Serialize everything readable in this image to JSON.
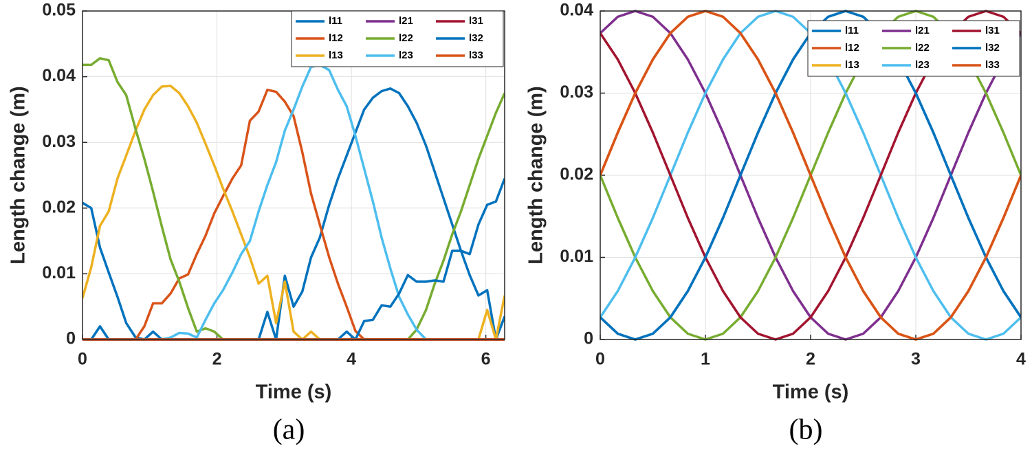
{
  "chart_data": [
    {
      "type": "line",
      "xlabel": "Time (s)",
      "ylabel": "Length change (m)",
      "caption": "(a)",
      "x": [
        0,
        0.13,
        0.26,
        0.39,
        0.52,
        0.65,
        0.79,
        0.92,
        1.05,
        1.18,
        1.31,
        1.44,
        1.57,
        1.7,
        1.83,
        1.96,
        2.09,
        2.23,
        2.36,
        2.49,
        2.62,
        2.75,
        2.88,
        3.01,
        3.14,
        3.27,
        3.4,
        3.53,
        3.67,
        3.8,
        3.93,
        4.06,
        4.19,
        4.32,
        4.45,
        4.58,
        4.71,
        4.84,
        4.97,
        5.11,
        5.24,
        5.37,
        5.5,
        5.63,
        5.76,
        5.89,
        6.02,
        6.15,
        6.28
      ],
      "series": [
        {
          "name": "l11",
          "color": "#0072bd",
          "values": [
            0.0208,
            0.02,
            0.014,
            0.0102,
            0.0065,
            0.0025,
            0.0003,
            0,
            0,
            0,
            0,
            0,
            0,
            0,
            0,
            0,
            0,
            0,
            0,
            0,
            0,
            0.0042,
            0,
            0.0097,
            0.005,
            0.0073,
            0.0125,
            0.0155,
            0.0205,
            0.0245,
            0.028,
            0.0315,
            0.035,
            0.0368,
            0.0378,
            0.0382,
            0.0375,
            0.0355,
            0.033,
            0.0295,
            0.0255,
            0.0215,
            0.0175,
            0.0135,
            0.0098,
            0.0067,
            0.0075,
            0,
            0.0035
          ]
        },
        {
          "name": "l12",
          "color": "#d95319",
          "values": [
            0,
            0,
            0,
            0,
            0,
            0,
            0,
            0.002,
            0.0055,
            0.0055,
            0.007,
            0.0093,
            0.0099,
            0.013,
            0.0158,
            0.0192,
            0.0218,
            0.0245,
            0.0265,
            0.0333,
            0.0347,
            0.038,
            0.0377,
            0.0362,
            0.034,
            0.0285,
            0.0222,
            0.0175,
            0.0125,
            0.0085,
            0.005,
            0.0013,
            0,
            0,
            0,
            0,
            0,
            0,
            0,
            0,
            0,
            0,
            0,
            0,
            0,
            0,
            0,
            0,
            0
          ]
        },
        {
          "name": "l13",
          "color": "#edb120",
          "values": [
            0.0063,
            0.011,
            0.0173,
            0.0195,
            0.0245,
            0.028,
            0.0318,
            0.035,
            0.0372,
            0.0385,
            0.0386,
            0.0375,
            0.0355,
            0.033,
            0.0298,
            0.0265,
            0.023,
            0.0195,
            0.016,
            0.0125,
            0.0085,
            0.0097,
            0.0025,
            0.0088,
            0.0012,
            0,
            0.0012,
            0,
            0,
            0,
            0,
            0,
            0,
            0,
            0,
            0,
            0,
            0,
            0,
            0,
            0,
            0,
            0,
            0,
            0,
            0,
            0.0045,
            0,
            0.0067
          ]
        },
        {
          "name": "l21",
          "color": "#7e2f8e",
          "values": [
            0,
            0,
            0,
            0,
            0,
            0,
            0,
            0,
            0,
            0,
            0,
            0,
            0,
            0,
            0,
            0,
            0,
            0,
            0,
            0,
            0,
            0,
            0,
            0,
            0,
            0,
            0,
            0,
            0,
            0,
            0,
            0,
            0,
            0,
            0,
            0,
            0,
            0,
            0,
            0,
            0,
            0,
            0,
            0,
            0,
            0,
            0,
            0,
            0
          ]
        },
        {
          "name": "l22",
          "color": "#77ac30",
          "values": [
            0.0418,
            0.0418,
            0.0428,
            0.0425,
            0.0392,
            0.0372,
            0.032,
            0.0275,
            0.0225,
            0.0172,
            0.0122,
            0.0088,
            0.0048,
            0.0012,
            0.0017,
            0.0012,
            0,
            0,
            0,
            0,
            0,
            0,
            0,
            0,
            0,
            0,
            0,
            0,
            0,
            0,
            0,
            0,
            0,
            0,
            0,
            0,
            0,
            0,
            0.0015,
            0.0045,
            0.0085,
            0.012,
            0.016,
            0.0195,
            0.0235,
            0.0275,
            0.031,
            0.0345,
            0.0375
          ]
        },
        {
          "name": "l23",
          "color": "#4dbeee",
          "values": [
            0,
            0,
            0,
            0,
            0,
            0,
            0,
            0,
            0,
            0,
            0.0003,
            0.001,
            0.0009,
            0.0003,
            0.003,
            0.0055,
            0.0075,
            0.0102,
            0.013,
            0.015,
            0.0195,
            0.0235,
            0.027,
            0.0318,
            0.035,
            0.0385,
            0.0415,
            0.0418,
            0.041,
            0.038,
            0.0355,
            0.031,
            0.026,
            0.021,
            0.0155,
            0.0108,
            0.0065,
            0.0038,
            0.0015,
            0,
            0,
            0,
            0,
            0,
            0,
            0,
            0,
            0,
            0
          ]
        },
        {
          "name": "l31",
          "color": "#a2142f",
          "values": [
            0,
            0,
            0,
            0,
            0,
            0,
            0,
            0,
            0,
            0,
            0,
            0,
            0,
            0,
            0,
            0,
            0,
            0,
            0,
            0,
            0,
            0,
            0,
            0,
            0,
            0,
            0,
            0,
            0,
            0,
            0,
            0,
            0,
            0,
            0,
            0,
            0,
            0,
            0,
            0,
            0,
            0,
            0,
            0,
            0,
            0,
            0,
            0,
            0
          ]
        },
        {
          "name": "l32",
          "color": "#0072bd",
          "values": [
            0,
            0,
            0.002,
            0,
            0,
            0,
            0,
            0,
            0.0012,
            0,
            0,
            0,
            0,
            0,
            0,
            0,
            0,
            0,
            0,
            0,
            0,
            0,
            0,
            0,
            0,
            0,
            0,
            0,
            0,
            0,
            0.0012,
            0,
            0.0028,
            0.003,
            0.0052,
            0.005,
            0.007,
            0.0098,
            0.0088,
            0.0088,
            0.009,
            0.0088,
            0.0135,
            0.0135,
            0.013,
            0.0175,
            0.0205,
            0.021,
            0.0245
          ]
        },
        {
          "name": "l33",
          "color": "#d95319",
          "values": [
            0,
            0,
            0,
            0,
            0,
            0,
            0,
            0,
            0,
            0,
            0,
            0,
            0,
            0,
            0,
            0,
            0,
            0,
            0,
            0,
            0,
            0,
            0,
            0,
            0,
            0,
            0,
            0,
            0,
            0,
            0,
            0,
            0,
            0,
            0,
            0,
            0,
            0,
            0,
            0,
            0,
            0,
            0,
            0,
            0,
            0,
            0,
            0,
            0
          ]
        }
      ],
      "xlim": [
        0,
        6.28
      ],
      "ylim": [
        0,
        0.05
      ],
      "xticks": [
        0,
        2,
        4,
        6
      ],
      "yticks": [
        0,
        0.01,
        0.02,
        0.03,
        0.04,
        0.05
      ],
      "grid": true,
      "legend": "northeast"
    },
    {
      "type": "line",
      "xlabel": "Time (s)",
      "ylabel": "Length change (m)",
      "caption": "(b)",
      "x": [
        0,
        0.167,
        0.333,
        0.5,
        0.667,
        0.833,
        1,
        1.167,
        1.333,
        1.5,
        1.667,
        1.833,
        2,
        2.167,
        2.333,
        2.5,
        2.667,
        2.833,
        3,
        3.167,
        3.333,
        3.5,
        3.667,
        3.833,
        4
      ],
      "series": [
        {
          "name": "l11",
          "color": "#0072bd",
          "values": [
            0.0027,
            0.0007,
            0,
            0.0007,
            0.0027,
            0.0059,
            0.01,
            0.0148,
            0.02,
            0.0252,
            0.03,
            0.0341,
            0.0373,
            0.0393,
            0.04,
            0.0393,
            0.0373,
            0.0341,
            0.03,
            0.0252,
            0.02,
            0.0148,
            0.01,
            0.0059,
            0.0027
          ]
        },
        {
          "name": "l12",
          "color": "#d95319",
          "values": [
            0.02,
            0.0252,
            0.03,
            0.0341,
            0.0373,
            0.0393,
            0.04,
            0.0393,
            0.0373,
            0.0341,
            0.03,
            0.0252,
            0.02,
            0.0148,
            0.01,
            0.0059,
            0.0027,
            0.0007,
            0,
            0.0007,
            0.0027,
            0.0059,
            0.01,
            0.0148,
            0.02
          ]
        },
        {
          "name": "l13",
          "color": "#edb120",
          "values": [
            0.02,
            0.0252,
            0.03,
            0.0341,
            0.0373,
            0.0393,
            0.04,
            0.0393,
            0.0373,
            0.0341,
            0.03,
            0.0252,
            0.02,
            0.0148,
            0.01,
            0.0059,
            0.0027,
            0.0007,
            0,
            0.0007,
            0.0027,
            0.0059,
            0.01,
            0.0148,
            0.02
          ]
        },
        {
          "name": "l21",
          "color": "#7e2f8e",
          "values": [
            0.0373,
            0.0393,
            0.04,
            0.0393,
            0.0373,
            0.0341,
            0.03,
            0.0252,
            0.02,
            0.0148,
            0.01,
            0.0059,
            0.0027,
            0.0007,
            0,
            0.0007,
            0.0027,
            0.0059,
            0.01,
            0.0148,
            0.02,
            0.0252,
            0.03,
            0.0341,
            0.0373
          ]
        },
        {
          "name": "l22",
          "color": "#77ac30",
          "values": [
            0.02,
            0.0148,
            0.01,
            0.0059,
            0.0027,
            0.0007,
            0,
            0.0007,
            0.0027,
            0.0059,
            0.01,
            0.0148,
            0.02,
            0.0252,
            0.03,
            0.0341,
            0.0373,
            0.0393,
            0.04,
            0.0393,
            0.0373,
            0.0341,
            0.03,
            0.0252,
            0.02
          ]
        },
        {
          "name": "l23",
          "color": "#4dbeee",
          "values": [
            0.0027,
            0.0059,
            0.01,
            0.0148,
            0.02,
            0.0252,
            0.03,
            0.0341,
            0.0373,
            0.0393,
            0.04,
            0.0393,
            0.0373,
            0.0341,
            0.03,
            0.0252,
            0.02,
            0.0148,
            0.01,
            0.0059,
            0.0027,
            0.0007,
            0,
            0.0007,
            0.0027
          ]
        },
        {
          "name": "l31",
          "color": "#a2142f",
          "values": [
            0.0373,
            0.0341,
            0.03,
            0.0252,
            0.02,
            0.0148,
            0.01,
            0.0059,
            0.0027,
            0.0007,
            0,
            0.0007,
            0.0027,
            0.0059,
            0.01,
            0.0148,
            0.02,
            0.0252,
            0.03,
            0.0341,
            0.0373,
            0.0393,
            0.04,
            0.0393,
            0.0373
          ]
        },
        {
          "name": "l32",
          "color": "#0072bd",
          "values": [
            0.0027,
            0.0007,
            0,
            0.0007,
            0.0027,
            0.0059,
            0.01,
            0.0148,
            0.02,
            0.0252,
            0.03,
            0.0341,
            0.0373,
            0.0393,
            0.04,
            0.0393,
            0.0373,
            0.0341,
            0.03,
            0.0252,
            0.02,
            0.0148,
            0.01,
            0.0059,
            0.0027
          ]
        },
        {
          "name": "l33",
          "color": "#d95319",
          "values": [
            0.02,
            0.0252,
            0.03,
            0.0341,
            0.0373,
            0.0393,
            0.04,
            0.0393,
            0.0373,
            0.0341,
            0.03,
            0.0252,
            0.02,
            0.0148,
            0.01,
            0.0059,
            0.0027,
            0.0007,
            0,
            0.0007,
            0.0027,
            0.0059,
            0.01,
            0.0148,
            0.02
          ]
        }
      ],
      "xlim": [
        0,
        4
      ],
      "ylim": [
        0,
        0.04
      ],
      "xticks": [
        0,
        1,
        2,
        3,
        4
      ],
      "yticks": [
        0,
        0.01,
        0.02,
        0.03,
        0.04
      ],
      "grid": true,
      "legend": "northeast"
    }
  ]
}
